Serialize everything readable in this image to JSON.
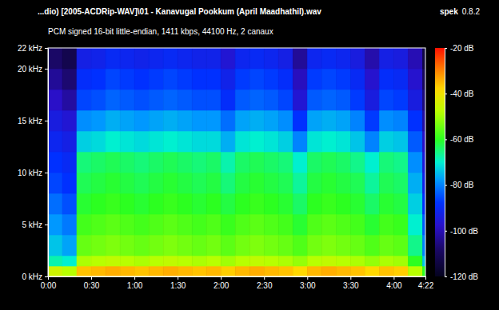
{
  "chart_data": {
    "type": "heatmap",
    "title": "...dio) [2005-ACDRip-WAV]\\01 - Kanavugal Pookkum (April Maadhathil).wav",
    "subtitle": "PCM signed 16-bit little-endian, 1411 kbps, 44100 Hz, 2 canaux",
    "program": "spek",
    "version": "0.8.2",
    "grid": false,
    "xlim": [
      0,
      262
    ],
    "xticks": [
      {
        "value": 0,
        "label": "0:00"
      },
      {
        "value": 30,
        "label": "0:30"
      },
      {
        "value": 60,
        "label": "1:00"
      },
      {
        "value": 90,
        "label": "1:30"
      },
      {
        "value": 120,
        "label": "2:00"
      },
      {
        "value": 150,
        "label": "2:30"
      },
      {
        "value": 180,
        "label": "3:00"
      },
      {
        "value": 210,
        "label": "3:30"
      },
      {
        "value": 240,
        "label": "4:00"
      },
      {
        "value": 262,
        "label": "4:22"
      }
    ],
    "ylim": [
      0,
      22
    ],
    "yticks": [
      {
        "value": 0,
        "label": "0 kHz"
      },
      {
        "value": 5,
        "label": "5 kHz"
      },
      {
        "value": 10,
        "label": "10 kHz"
      },
      {
        "value": 15,
        "label": "15 kHz"
      },
      {
        "value": 20,
        "label": "20 kHz"
      },
      {
        "value": 22,
        "label": "22 kHz"
      }
    ],
    "color_range": [
      -120,
      -20
    ],
    "color_ticks": [
      {
        "value": -20,
        "label": "-20 dB"
      },
      {
        "value": -40,
        "label": "-40 dB"
      },
      {
        "value": -60,
        "label": "-60 dB"
      },
      {
        "value": -80,
        "label": "-80 dB"
      },
      {
        "value": -100,
        "label": "-100 dB"
      },
      {
        "value": -120,
        "label": "-120 dB"
      }
    ],
    "x": [
      0,
      10,
      20,
      30,
      40,
      50,
      60,
      70,
      80,
      90,
      100,
      110,
      120,
      130,
      140,
      150,
      160,
      170,
      180,
      190,
      200,
      210,
      220,
      230,
      240,
      250,
      260,
      262
    ],
    "y": [
      0,
      1,
      2,
      4,
      6,
      8,
      10,
      12,
      14,
      16,
      18,
      20,
      22
    ],
    "values": [
      [
        -45,
        -48,
        -36,
        -35,
        -34,
        -35,
        -36,
        -35,
        -34,
        -35,
        -36,
        -35,
        -37,
        -35,
        -34,
        -35,
        -36,
        -38,
        -35,
        -34,
        -35,
        -36,
        -38,
        -36,
        -37,
        -48,
        -60
      ],
      [
        -68,
        -70,
        -49,
        -48,
        -47,
        -48,
        -49,
        -48,
        -47,
        -48,
        -49,
        -48,
        -50,
        -48,
        -47,
        -48,
        -49,
        -51,
        -48,
        -47,
        -48,
        -49,
        -51,
        -49,
        -50,
        -60,
        -74
      ],
      [
        -74,
        -77,
        -55,
        -54,
        -53,
        -54,
        -55,
        -54,
        -53,
        -54,
        -55,
        -54,
        -56,
        -54,
        -53,
        -54,
        -55,
        -57,
        -54,
        -53,
        -54,
        -55,
        -57,
        -55,
        -56,
        -66,
        -80
      ],
      [
        -78,
        -81,
        -58,
        -57,
        -56,
        -57,
        -58,
        -57,
        -56,
        -57,
        -58,
        -57,
        -59,
        -57,
        -56,
        -57,
        -58,
        -61,
        -57,
        -56,
        -57,
        -58,
        -61,
        -58,
        -59,
        -70,
        -84
      ],
      [
        -82,
        -85,
        -61,
        -60,
        -59,
        -60,
        -61,
        -60,
        -59,
        -60,
        -61,
        -60,
        -62,
        -60,
        -59,
        -60,
        -61,
        -64,
        -60,
        -59,
        -60,
        -61,
        -64,
        -61,
        -62,
        -73,
        -88
      ],
      [
        -86,
        -88,
        -63,
        -62,
        -61,
        -62,
        -63,
        -62,
        -61,
        -62,
        -63,
        -62,
        -65,
        -62,
        -61,
        -62,
        -63,
        -67,
        -62,
        -61,
        -62,
        -63,
        -67,
        -63,
        -64,
        -76,
        -92
      ],
      [
        -88,
        -90,
        -65,
        -64,
        -63,
        -64,
        -65,
        -64,
        -63,
        -64,
        -65,
        -64,
        -68,
        -64,
        -63,
        -64,
        -65,
        -70,
        -64,
        -63,
        -64,
        -66,
        -70,
        -65,
        -66,
        -79,
        -95
      ],
      [
        -91,
        -93,
        -73,
        -72,
        -70,
        -71,
        -72,
        -71,
        -70,
        -71,
        -72,
        -72,
        -76,
        -71,
        -70,
        -71,
        -73,
        -80,
        -71,
        -70,
        -71,
        -74,
        -80,
        -73,
        -74,
        -84,
        -98
      ],
      [
        -94,
        -96,
        -79,
        -78,
        -76,
        -77,
        -78,
        -77,
        -76,
        -77,
        -78,
        -78,
        -82,
        -77,
        -76,
        -77,
        -79,
        -88,
        -77,
        -76,
        -77,
        -80,
        -87,
        -79,
        -80,
        -88,
        -102
      ],
      [
        -98,
        -102,
        -86,
        -85,
        -83,
        -84,
        -85,
        -84,
        -83,
        -84,
        -85,
        -85,
        -89,
        -84,
        -83,
        -84,
        -86,
        -96,
        -84,
        -83,
        -84,
        -87,
        -94,
        -86,
        -87,
        -94,
        -106
      ],
      [
        -103,
        -107,
        -89,
        -88,
        -86,
        -87,
        -88,
        -87,
        -86,
        -87,
        -88,
        -88,
        -92,
        -87,
        -86,
        -87,
        -89,
        -99,
        -87,
        -86,
        -87,
        -90,
        -97,
        -89,
        -90,
        -97,
        -110
      ],
      [
        -108,
        -112,
        -93,
        -92,
        -90,
        -91,
        -92,
        -91,
        -90,
        -91,
        -92,
        -92,
        -96,
        -91,
        -90,
        -91,
        -93,
        -103,
        -91,
        -90,
        -91,
        -94,
        -101,
        -93,
        -94,
        -100,
        -114
      ]
    ]
  }
}
